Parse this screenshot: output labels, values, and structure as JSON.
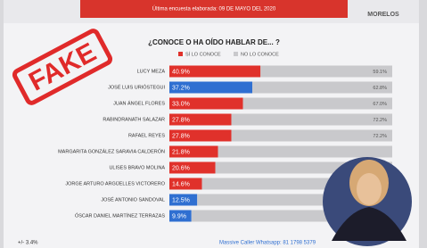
{
  "chart_data": {
    "type": "stacked-bar-horizontal",
    "header": "Última encuesta elaborada: 09 DE MAYO DEL 2020",
    "region": "MORELOS",
    "title": "¿CONOCE O HA OÍDO HABLAR DE... ?",
    "stamp": "FAKE",
    "footer": "Massive Caller Whatsapp: 81 1798 5379",
    "margin_note": "+/- 3.4%",
    "categories": [
      "LUCY MEZA",
      "JOSÉ LUIS URIÓSTEGUI",
      "JUAN ÁNGEL FLORES",
      "RABINDRANATH SALAZAR",
      "RAFAEL REYES",
      "MARGARITA GONZÁLEZ SARAVIA CALDERÓN",
      "ULISES BRAVO MOLINA",
      "JORGE ARTURO ARGÜELLES VICTORERO",
      "JOSÉ ANTONIO SANDOVAL",
      "ÓSCAR DANIEL MARTÍNEZ TERRAZAS"
    ],
    "xlim": [
      0,
      100
    ],
    "series": [
      {
        "name": "SÍ LO CONOCE",
        "color": "#e0312b",
        "colors": [
          "#e0312b",
          "#2f6fd1",
          "#e0312b",
          "#e0312b",
          "#e0312b",
          "#e0312b",
          "#e0312b",
          "#e0312b",
          "#2f6fd1",
          "#2f6fd1"
        ],
        "values": [
          40.9,
          37.2,
          33.0,
          27.8,
          27.8,
          21.8,
          20.6,
          14.6,
          12.5,
          9.9
        ],
        "value_labels": [
          "40.9%",
          "37.2%",
          "33.0%",
          "27.8%",
          "27.8%",
          "21.8%",
          "20.6%",
          "14.6%",
          "12.5%",
          "9.9%"
        ]
      },
      {
        "name": "NO LO CONOCE",
        "color": "#c9c9cc",
        "values": [
          59.1,
          62.8,
          67.0,
          72.2,
          72.2,
          78.2,
          79.4,
          85.4,
          87.5,
          90.1
        ],
        "value_labels": [
          "59.1%",
          "62.8%",
          "67.0%",
          "72.2%",
          "72.2%",
          null,
          null,
          null,
          null,
          null
        ]
      }
    ]
  }
}
